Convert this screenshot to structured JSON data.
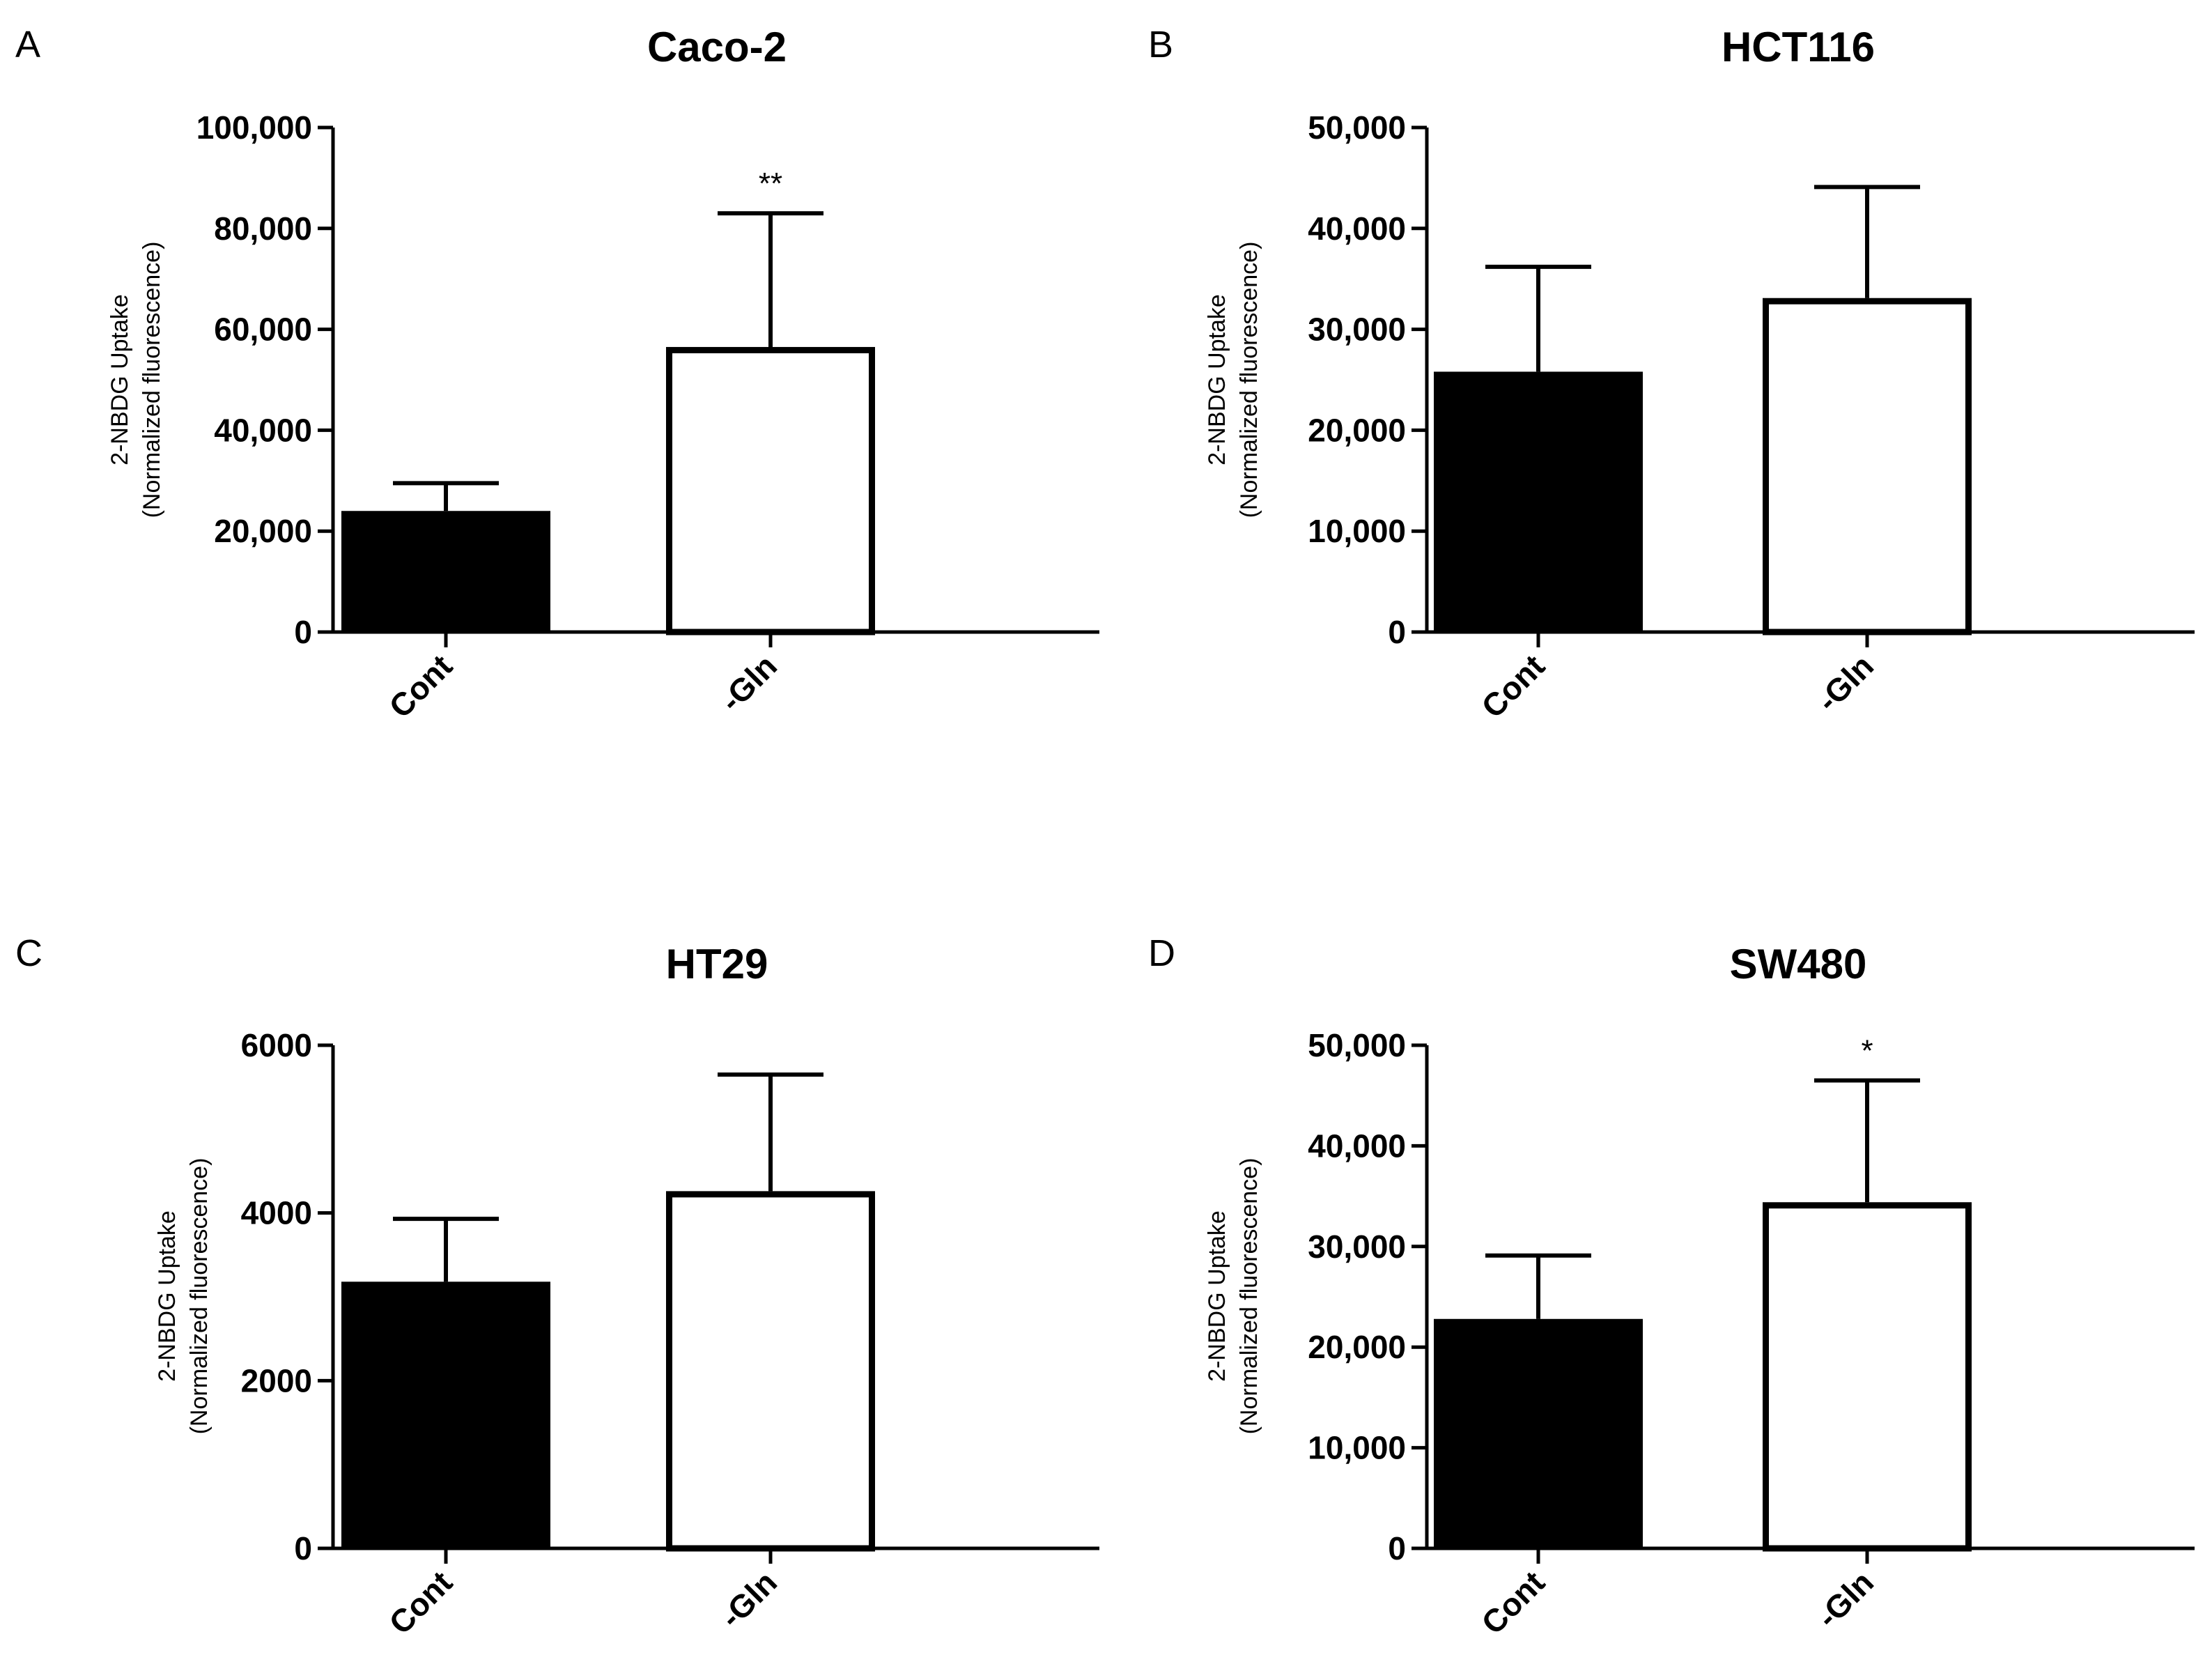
{
  "figure": {
    "panels": [
      {
        "letter": "A",
        "title": "Caco-2",
        "ylabel_line1": "2-NBDG Uptake",
        "ylabel_line2": "(Normalized fluorescence)"
      },
      {
        "letter": "B",
        "title": "HCT116",
        "ylabel_line1": "2-NBDG Uptake",
        "ylabel_line2": "(Normalized fluorescence)"
      },
      {
        "letter": "C",
        "title": "HT29",
        "ylabel_line1": "2-NBDG Uptake",
        "ylabel_line2": "(Normalized fluorescence)"
      },
      {
        "letter": "D",
        "title": "SW480",
        "ylabel_line1": "2-NBDG Uptake",
        "ylabel_line2": "(Normalized fluorescence)"
      }
    ]
  },
  "chart_data": [
    {
      "type": "bar",
      "panel": "A",
      "title": "Caco-2",
      "xlabel": "",
      "ylabel": "2-NBDG Uptake (Normalized fluorescence)",
      "categories": [
        "Cont",
        "-Gln"
      ],
      "values": [
        24000,
        56500
      ],
      "errors": [
        5500,
        26500
      ],
      "bar_fill": [
        "#000000",
        "#ffffff"
      ],
      "significance": [
        "",
        "**"
      ],
      "ylim": [
        0,
        100000
      ],
      "yticks": [
        0,
        20000,
        40000,
        60000,
        80000,
        100000
      ],
      "ytick_labels": [
        "0",
        "20,000",
        "40,000",
        "60,000",
        "80,000",
        "100,000"
      ],
      "grid": false
    },
    {
      "type": "bar",
      "panel": "B",
      "title": "HCT116",
      "xlabel": "",
      "ylabel": "2-NBDG Uptake (Normalized fluorescence)",
      "categories": [
        "Cont",
        "-Gln"
      ],
      "values": [
        25800,
        33100
      ],
      "errors": [
        10400,
        11000
      ],
      "bar_fill": [
        "#000000",
        "#ffffff"
      ],
      "significance": [
        "",
        ""
      ],
      "ylim": [
        0,
        50000
      ],
      "yticks": [
        0,
        10000,
        20000,
        30000,
        40000,
        50000
      ],
      "ytick_labels": [
        "0",
        "10,000",
        "20,000",
        "30,000",
        "40,000",
        "50,000"
      ],
      "grid": false
    },
    {
      "type": "bar",
      "panel": "C",
      "title": "HT29",
      "xlabel": "",
      "ylabel": "2-NBDG Uptake (Normalized fluorescence)",
      "categories": [
        "Cont",
        "-Gln"
      ],
      "values": [
        3180,
        4260
      ],
      "errors": [
        750,
        1390
      ],
      "bar_fill": [
        "#000000",
        "#ffffff"
      ],
      "significance": [
        "",
        ""
      ],
      "ylim": [
        0,
        6000
      ],
      "yticks": [
        0,
        2000,
        4000,
        6000
      ],
      "ytick_labels": [
        "0",
        "2000",
        "4000",
        "6000"
      ],
      "grid": false
    },
    {
      "type": "bar",
      "panel": "D",
      "title": "SW480",
      "xlabel": "",
      "ylabel": "2-NBDG Uptake (Normalized fluorescence)",
      "categories": [
        "Cont",
        "-Gln"
      ],
      "values": [
        22800,
        34400
      ],
      "errors": [
        6300,
        12100
      ],
      "bar_fill": [
        "#000000",
        "#ffffff"
      ],
      "significance": [
        "",
        "*"
      ],
      "ylim": [
        0,
        50000
      ],
      "yticks": [
        0,
        10000,
        20000,
        30000,
        40000,
        50000
      ],
      "ytick_labels": [
        "0",
        "10,000",
        "20,000",
        "30,000",
        "40,000",
        "50,000"
      ],
      "grid": false
    }
  ]
}
